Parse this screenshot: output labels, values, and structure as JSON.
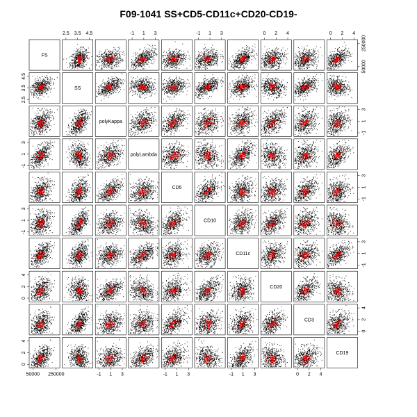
{
  "chart_data": {
    "type": "scatter",
    "title": "F09-1041 SS+CD5-CD11c+CD20-CD19-",
    "variables": [
      "FS",
      "SS",
      "polyKappa",
      "polyLambda",
      "CD5",
      "CD10",
      "CD11c",
      "CD20",
      "CD3",
      "CD19"
    ],
    "axis_ticks": [
      {
        "var": "FS",
        "side": "bottom-left-col",
        "labels": [
          "50000",
          "250000"
        ]
      },
      {
        "var": "FS",
        "side": "right-row",
        "labels": [
          "50000",
          "250000"
        ]
      },
      {
        "var": "SS",
        "labels": [
          "2.5",
          "3.5",
          "4.5"
        ]
      },
      {
        "var": "polyKappa",
        "labels": [
          "-1",
          "1",
          "3"
        ]
      },
      {
        "var": "polyLambda",
        "labels": [
          "-1",
          "1",
          "3"
        ]
      },
      {
        "var": "CD5",
        "labels": [
          "-1",
          "1",
          "3"
        ]
      },
      {
        "var": "CD10",
        "labels": [
          "-1",
          "1",
          "3"
        ]
      },
      {
        "var": "CD11c",
        "labels": [
          "-1",
          "1",
          "3"
        ]
      },
      {
        "var": "CD20",
        "labels": [
          "0",
          "2",
          "4"
        ]
      },
      {
        "var": "CD3",
        "labels": [
          "0",
          "2",
          "4"
        ]
      },
      {
        "var": "CD19",
        "labels": [
          "0",
          "2",
          "4"
        ]
      }
    ],
    "series": [
      {
        "color": "#000000"
      },
      {
        "color": "#ff0000"
      }
    ],
    "colors": {
      "background": "#ffffff",
      "all_events": "#000000",
      "gated_events": "#ff0000"
    }
  }
}
